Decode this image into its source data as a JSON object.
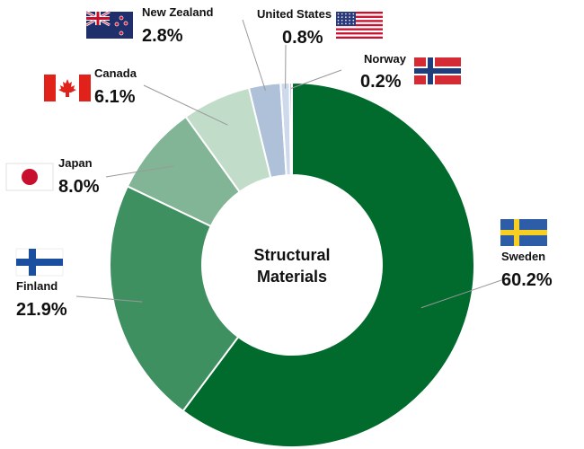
{
  "chart_data": {
    "type": "pie",
    "style": "donut",
    "center_label": [
      "Structural",
      "Materials"
    ],
    "slices": [
      {
        "country": "Sweden",
        "value": 60.2,
        "label": "60.2%",
        "color": "#006B2C",
        "flag": "sweden-flag"
      },
      {
        "country": "Finland",
        "value": 21.9,
        "label": "21.9%",
        "color": "#3F9060",
        "flag": "finland-flag"
      },
      {
        "country": "Japan",
        "value": 8.0,
        "label": "8.0%",
        "color": "#82B596",
        "flag": "japan-flag"
      },
      {
        "country": "Canada",
        "value": 6.1,
        "label": "6.1%",
        "color": "#C1DCC9",
        "flag": "canada-flag"
      },
      {
        "country": "New Zealand",
        "value": 2.8,
        "label": "2.8%",
        "color": "#AFC0D9",
        "flag": "new-zealand-flag"
      },
      {
        "country": "United States",
        "value": 0.8,
        "label": "0.8%",
        "color": "#CED9EB",
        "flag": "united-states-flag"
      },
      {
        "country": "Norway",
        "value": 0.2,
        "label": "0.2%",
        "color": "#7B96C3",
        "flag": "norway-flag"
      }
    ],
    "legend": "none",
    "labels": "outside with leader lines and country flags"
  }
}
